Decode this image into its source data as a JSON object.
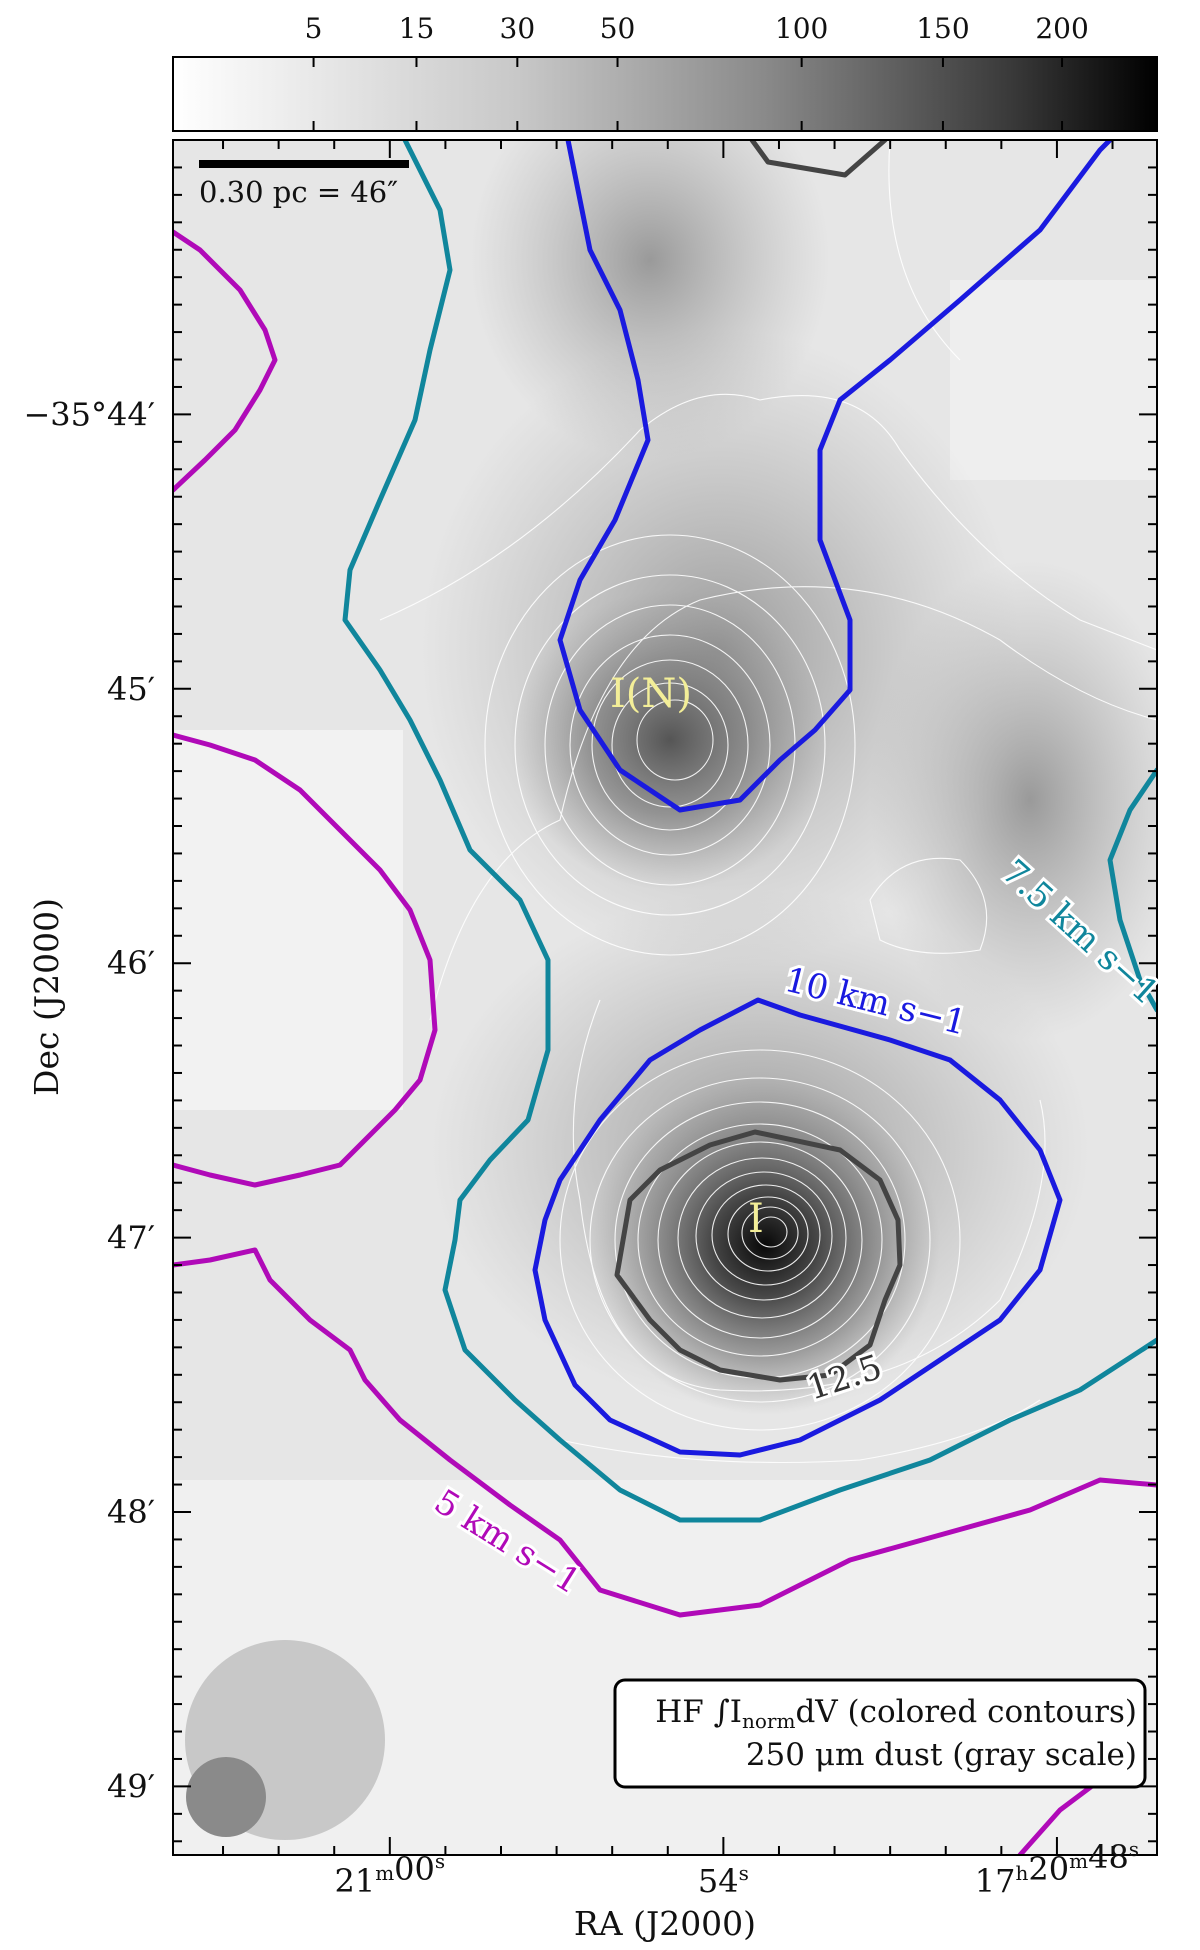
{
  "chart_data": {
    "type": "heatmap",
    "colorbar": {
      "tick_labels": [
        "5",
        "15",
        "30",
        "50",
        "100",
        "150",
        "200"
      ],
      "ticks": [
        5,
        15,
        30,
        50,
        100,
        150,
        200
      ],
      "range": [
        0,
        245
      ],
      "colormap": "white-to-black gray"
    },
    "xlabel": "RA (J2000)",
    "ylabel": "Dec (J2000)",
    "x_ticks": [
      {
        "value_sec": 60,
        "label_main": "21",
        "label_unit": "m",
        "label_sec": "00",
        "label_sec_unit": "s"
      },
      {
        "value_sec": 54,
        "label_main": "54",
        "label_unit": "s"
      },
      {
        "value_sec": 48,
        "label_main": "17",
        "label_unit": "h",
        "label_mid": "20",
        "label_mid_unit": "m",
        "label_sec": "48",
        "label_sec_unit": "s"
      }
    ],
    "xlim_sec": [
      63.9,
      46.2
    ],
    "y_ticks": [
      {
        "value_arcmin": -44,
        "label": "−35°44′"
      },
      {
        "value_arcmin": -45,
        "label": "45′"
      },
      {
        "value_arcmin": -46,
        "label": "46′"
      },
      {
        "value_arcmin": -47,
        "label": "47′"
      },
      {
        "value_arcmin": -48,
        "label": "48′"
      },
      {
        "value_arcmin": -49,
        "label": "49′"
      }
    ],
    "ylim_arcmin": [
      -49.25,
      -43.0
    ],
    "scale_bar": {
      "text": "0.30 pc = 46″",
      "length_arcsec": 46
    },
    "sources": [
      {
        "label": "I(N)",
        "ra_sec": 55.0,
        "dec_arcmin": -45.1
      },
      {
        "label": "I",
        "ra_sec": 53.1,
        "dec_arcmin": -46.95
      }
    ],
    "colored_contours": [
      {
        "label": "5 km s−1",
        "value": 5,
        "color": "#b00ab8"
      },
      {
        "label": "7.5 km s−1",
        "value": 7.5,
        "color": "#10869c"
      },
      {
        "label": "10 km s−1",
        "value": 10,
        "color": "#1a1adf"
      },
      {
        "label": "12.5",
        "value": 12.5,
        "color": "#444444"
      }
    ],
    "legend": {
      "line1": "HF ∫I",
      "line1_sub": "norm",
      "line1_rest": "dV (colored contours)",
      "line2": "250 μm dust (gray scale)",
      "placement": "bottom-right"
    },
    "beams": [
      "large beam",
      "small beam"
    ]
  }
}
